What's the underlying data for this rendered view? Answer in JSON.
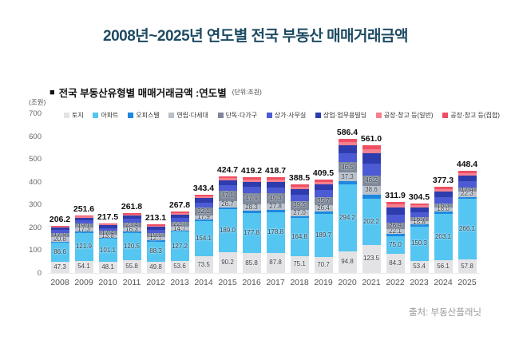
{
  "header": {
    "title": "2008년~2025년 연도별 전국 부동산 매매거래금액"
  },
  "chart": {
    "subtitle_bullet": "■",
    "subtitle": "전국 부동산유형별 매매거래금액 :연도별",
    "unit_note": "(단위:조원)",
    "y_unit": "(조원)"
  },
  "footer": {
    "source": "출처: 부동산플래닛"
  },
  "chart_data": {
    "type": "bar",
    "variant": "stacked",
    "title": "전국 부동산유형별 매매거래금액 :연도별",
    "unit": "조원",
    "xlabel": "",
    "ylabel": "(조원)",
    "ylim": [
      0,
      700
    ],
    "y_ticks": [
      0,
      100,
      200,
      300,
      400,
      500,
      600,
      700
    ],
    "grid": false,
    "legend_position": "top",
    "categories": [
      "2008",
      "2009",
      "2010",
      "2011",
      "2012",
      "2013",
      "2014",
      "2015",
      "2016",
      "2017",
      "2018",
      "2019",
      "2020",
      "2021",
      "2022",
      "2023",
      "2024",
      "2025"
    ],
    "totals": [
      206.2,
      251.6,
      217.5,
      261.8,
      213.1,
      267.8,
      343.4,
      424.7,
      419.2,
      418.7,
      388.5,
      409.5,
      586.4,
      561.0,
      311.9,
      304.5,
      377.3,
      448.4
    ],
    "labeled_series_indexes": [
      0,
      1,
      3,
      4
    ],
    "estimated_series_indexes": [
      2,
      5,
      6,
      7,
      8
    ],
    "series": [
      {
        "name": "토지",
        "color": "#e3e3e5",
        "values": [
          47.3,
          54.1,
          48.1,
          55.8,
          49.8,
          53.6,
          73.5,
          90.2,
          85.8,
          87.8,
          75.1,
          70.7,
          94.8,
          123.5,
          84.3,
          53.4,
          56.1,
          57.8
        ]
      },
      {
        "name": "아파트",
        "color": "#55c5f1",
        "values": [
          86.6,
          121.9,
          101.1,
          120.5,
          88.3,
          127.2,
          154.1,
          189.0,
          177.8,
          178.8,
          164.8,
          189.7,
          294.2,
          202.2,
          75.0,
          150.3,
          203.1,
          266.1
        ]
      },
      {
        "name": "오피스텔",
        "color": "#1e88e0",
        "values": [
          4.0,
          4.7,
          4.5,
          5.5,
          5.1,
          6.0,
          7.9,
          8.6,
          9.5,
          9.5,
          9.9,
          10.4,
          13.6,
          18.1,
          12.4,
          8.2,
          10.1,
          10.2
        ]
      },
      {
        "name": "연립·다세대",
        "color": "#b7bfca",
        "values": [
          20.8,
          17.3,
          13.8,
          16.3,
          12.7,
          14.7,
          17.9,
          26.7,
          28.3,
          27.8,
          27.0,
          26.4,
          37.3,
          38.6,
          22.1,
          15.8,
          18.0,
          22.3
        ]
      },
      {
        "name": "단독·다가구",
        "color": "#7f899b",
        "values": [
          17.9,
          19.1,
          17.4,
          23.4,
          19.9,
          22.7,
          32.1,
          47.1,
          47.9,
          45.3,
          39.5,
          35.7,
          46.5,
          46.2,
          26.9,
          16.7,
          16.3,
          17.4
        ]
      },
      {
        "name": "상가·사무실",
        "color": "#4c5bd4",
        "values": [
          11.4,
          13.3,
          12.5,
          15.6,
          14.4,
          16.9,
          22.4,
          24.4,
          27.0,
          26.9,
          27.9,
          29.6,
          38.6,
          51.2,
          35.2,
          23.2,
          28.5,
          28.8
        ]
      },
      {
        "name": "상업·업무용빌딩",
        "color": "#2e3cae",
        "values": [
          10.2,
          11.8,
          11.1,
          13.7,
          12.7,
          14.9,
          19.7,
          21.5,
          23.8,
          23.7,
          24.6,
          26.1,
          34.1,
          45.2,
          31.1,
          20.5,
          25.1,
          25.4
        ]
      },
      {
        "name": "공장·창고 등(일반)",
        "color": "#f5808e",
        "values": [
          4.0,
          4.7,
          4.5,
          5.5,
          5.1,
          5.9,
          7.9,
          8.6,
          9.5,
          9.5,
          9.9,
          10.4,
          13.6,
          18.0,
          12.4,
          8.2,
          10.1,
          10.2
        ]
      },
      {
        "name": "공장·창고 등(집합)",
        "color": "#f04f63",
        "values": [
          4.0,
          4.7,
          4.5,
          5.5,
          5.1,
          5.9,
          7.9,
          8.6,
          9.6,
          9.4,
          9.8,
          10.5,
          13.7,
          18.0,
          12.5,
          8.2,
          10.0,
          10.2
        ]
      }
    ]
  }
}
